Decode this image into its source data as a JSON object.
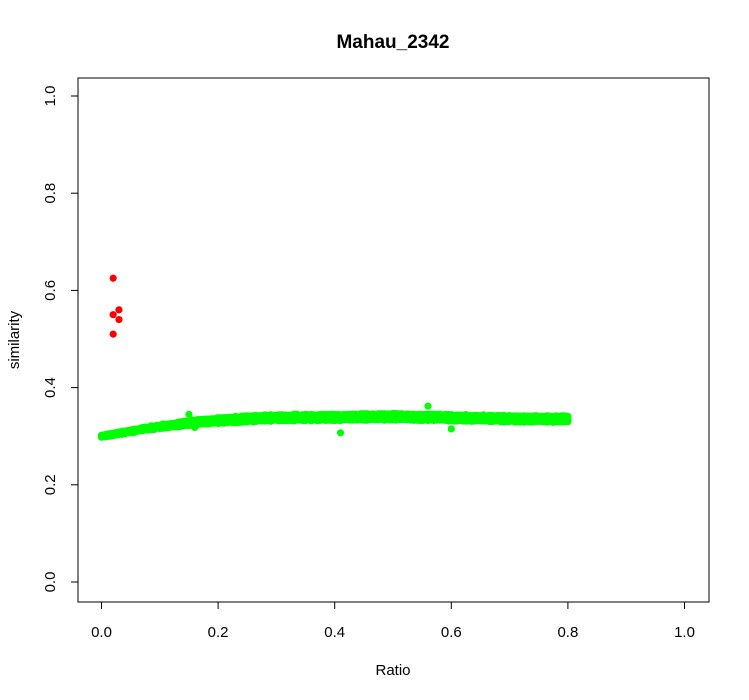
{
  "chart_data": {
    "type": "scatter",
    "title": "Mahau_2342",
    "xlabel": "Ratio",
    "ylabel": "similarity",
    "xlim": [
      0.0,
      1.0
    ],
    "ylim": [
      0.0,
      1.0
    ],
    "xticks": [
      "0.0",
      "0.2",
      "0.4",
      "0.6",
      "0.8",
      "1.0"
    ],
    "yticks": [
      "0.0",
      "0.2",
      "0.4",
      "0.6",
      "0.8",
      "1.0"
    ],
    "grid": false,
    "legend": "none",
    "series": [
      {
        "color": "#ff0000",
        "points": [
          [
            0.02,
            0.625
          ],
          [
            0.02,
            0.55
          ],
          [
            0.03,
            0.56
          ],
          [
            0.03,
            0.54
          ],
          [
            0.02,
            0.51
          ]
        ]
      },
      {
        "color": "#00ff00",
        "band": {
          "x_start": 0.0,
          "x_end": 0.8,
          "x_step": 0.005,
          "mean_curve": [
            [
              0.0,
              0.3
            ],
            [
              0.05,
              0.31
            ],
            [
              0.1,
              0.32
            ],
            [
              0.15,
              0.327
            ],
            [
              0.2,
              0.332
            ],
            [
              0.25,
              0.336
            ],
            [
              0.3,
              0.338
            ],
            [
              0.4,
              0.339
            ],
            [
              0.5,
              0.34
            ],
            [
              0.6,
              0.338
            ],
            [
              0.7,
              0.336
            ],
            [
              0.8,
              0.335
            ]
          ],
          "spread": 0.006
        },
        "outliers": [
          [
            0.15,
            0.345
          ],
          [
            0.16,
            0.318
          ],
          [
            0.41,
            0.307
          ],
          [
            0.56,
            0.362
          ],
          [
            0.6,
            0.315
          ]
        ]
      }
    ]
  }
}
